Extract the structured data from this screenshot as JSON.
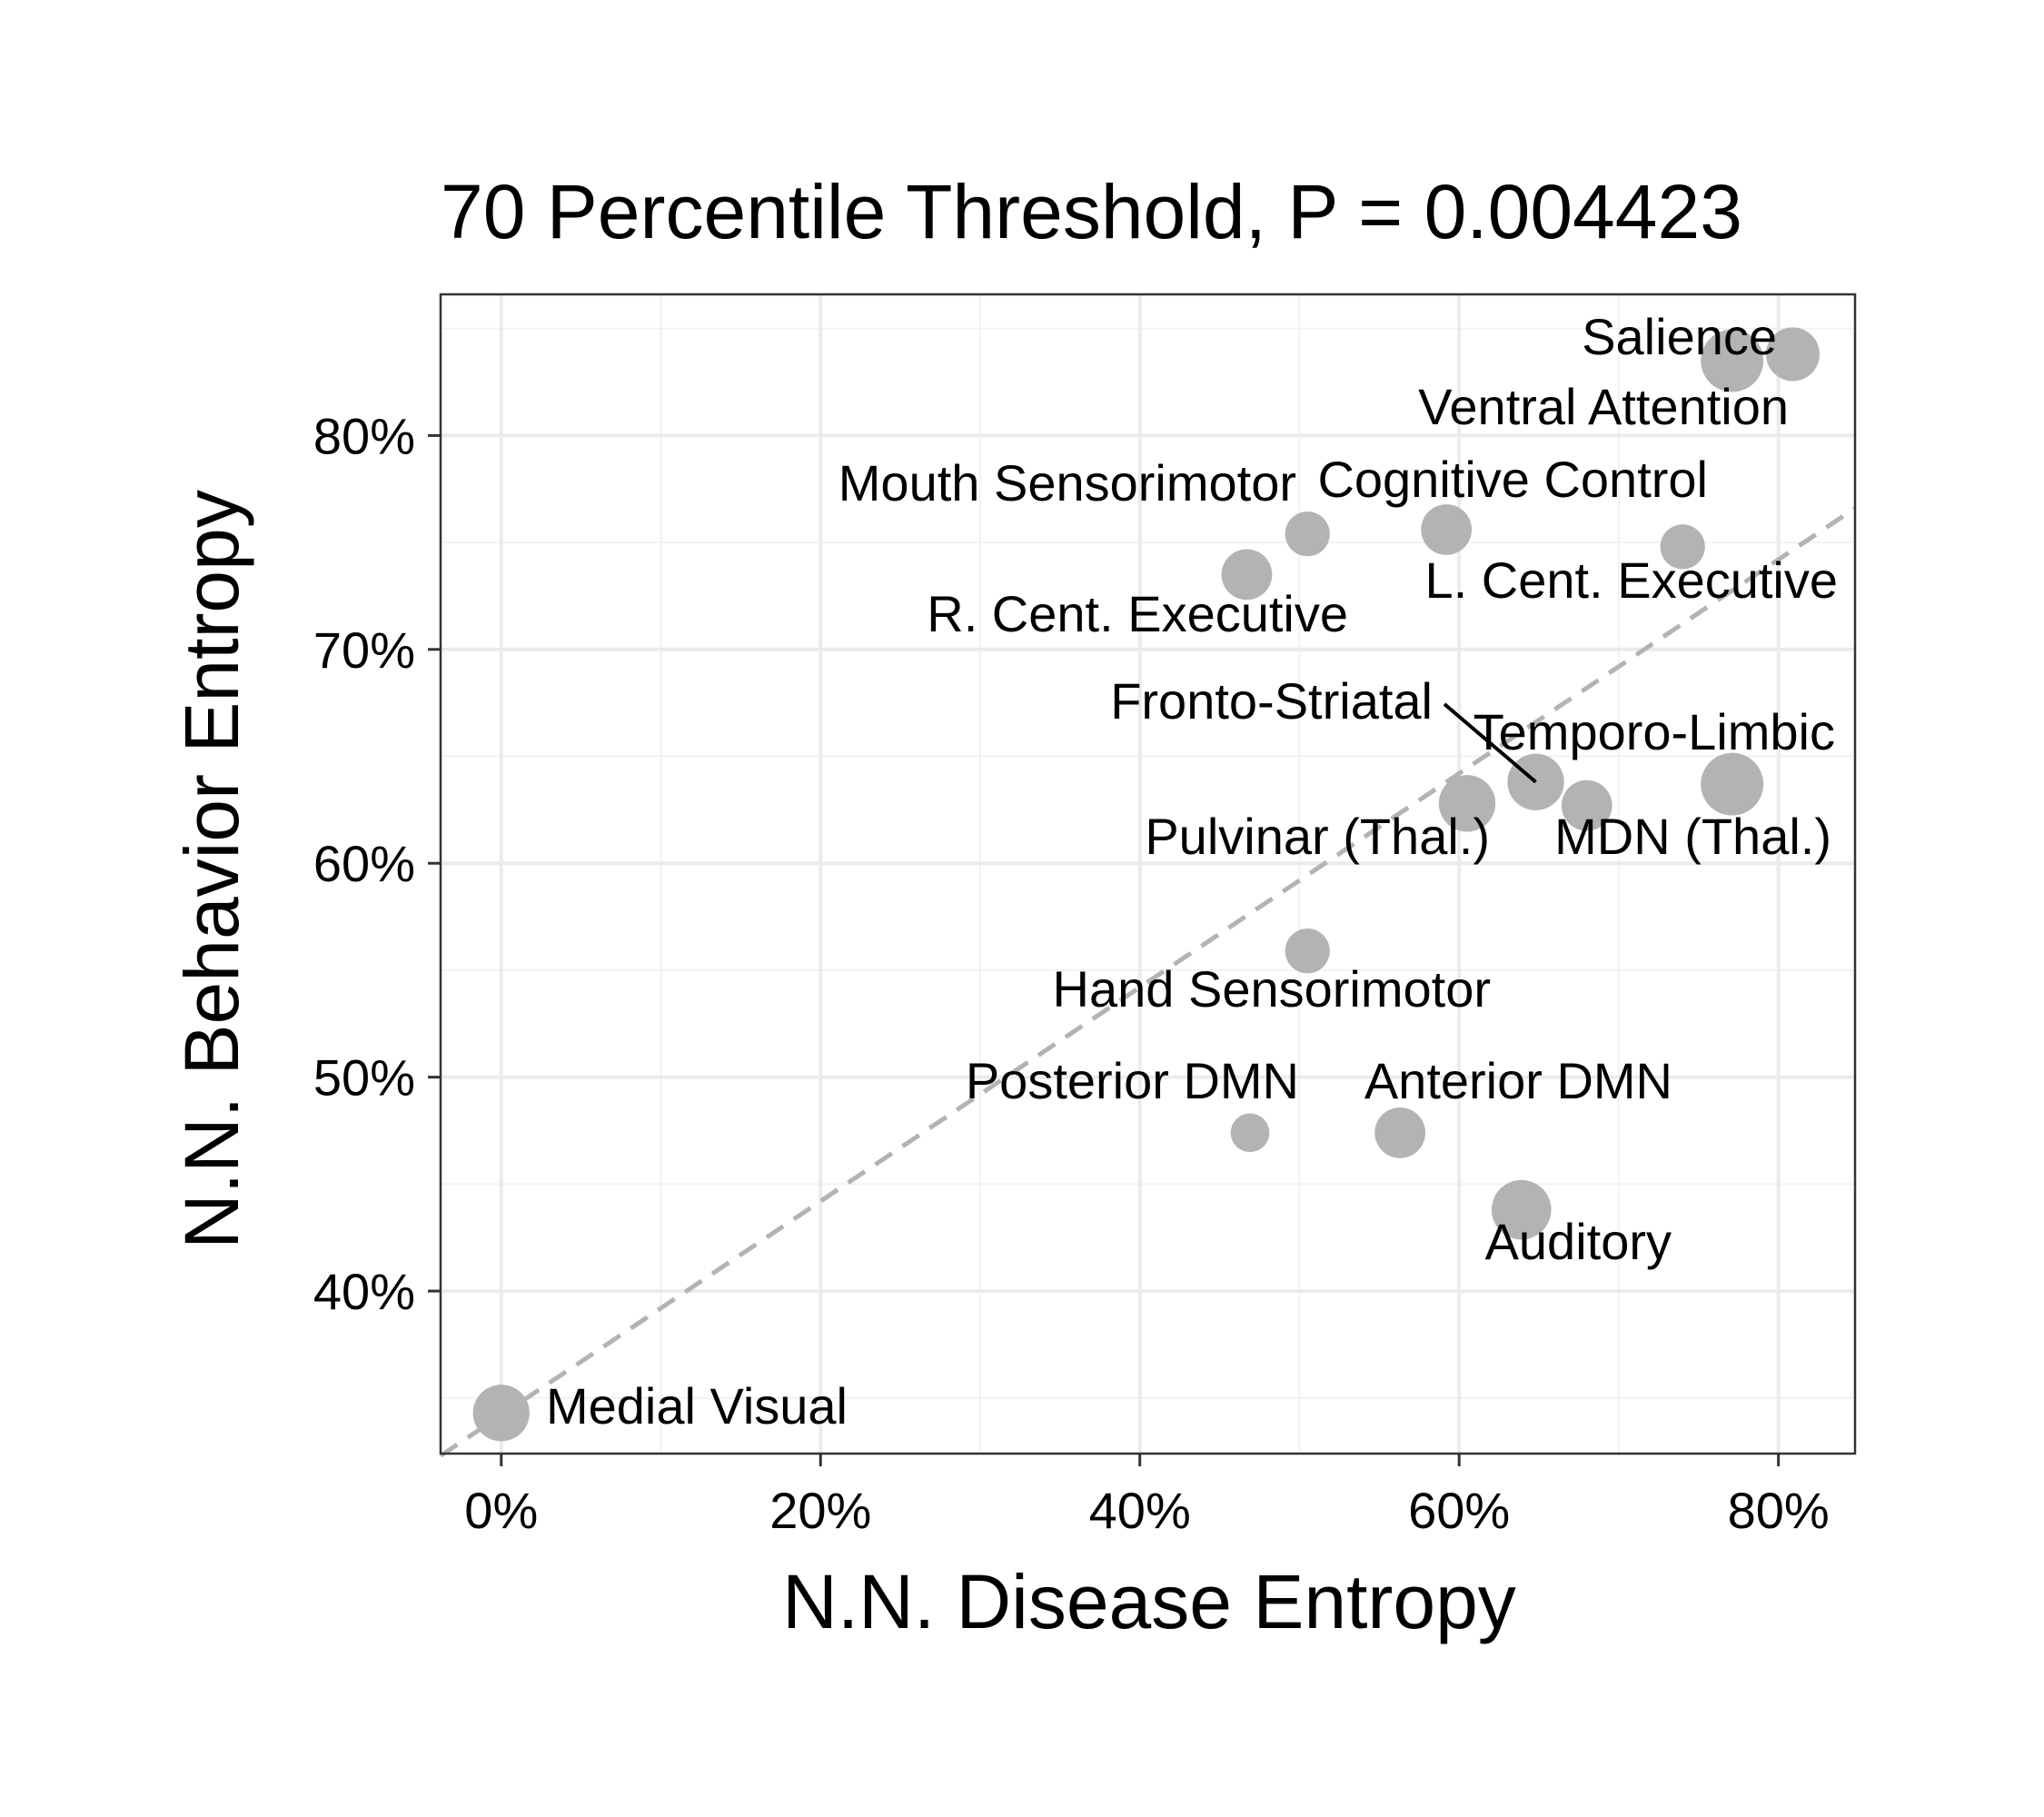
{
  "chart_data": {
    "type": "scatter",
    "title": "70 Percentile Threshold, P = 0.004423",
    "xlabel": "N.N. Disease Entropy",
    "ylabel": "N.N. Behavior Entropy",
    "xlim": [
      -3.8,
      84.8
    ],
    "ylim": [
      32.4,
      86.6
    ],
    "x_ticks": [
      0,
      20,
      40,
      60,
      80
    ],
    "x_tick_labels": [
      "0%",
      "20%",
      "40%",
      "60%",
      "80%"
    ],
    "y_ticks": [
      40,
      50,
      60,
      70,
      80
    ],
    "y_tick_labels": [
      "40%",
      "50%",
      "60%",
      "70%",
      "80%"
    ],
    "grid": true,
    "colors": {
      "point": "#b3b3b3",
      "panel_border": "#333333",
      "grid_major": "#ebebeb",
      "grid_minor": "#f2f2f2",
      "reference_line": "#b3b3b3"
    },
    "reference_line": {
      "slope": 0.5,
      "intercept": 34.2,
      "style": "dashed"
    },
    "points": [
      {
        "name": "Salience",
        "x": 77.1,
        "y": 83.5,
        "size": 4.2
      },
      {
        "name": "Ventral Attention",
        "x": 80.9,
        "y": 83.8,
        "size": 3.6
      },
      {
        "name": "Cognitive Control",
        "x": 59.2,
        "y": 75.6,
        "size": 3.4
      },
      {
        "name": "Mouth Sensorimotor",
        "x": 50.5,
        "y": 75.4,
        "size": 3.0
      },
      {
        "name": "L. Cent. Executive",
        "x": 74.0,
        "y": 74.8,
        "size": 3.0
      },
      {
        "name": "R. Cent. Executive",
        "x": 46.7,
        "y": 73.5,
        "size": 3.4
      },
      {
        "name": "Fronto-Striatal",
        "x": 64.8,
        "y": 63.8,
        "size": 3.8
      },
      {
        "name": "Temporo-Limbic",
        "x": 77.1,
        "y": 63.7,
        "size": 4.2
      },
      {
        "name": "Pulvinar (Thal.)",
        "x": 60.5,
        "y": 62.8,
        "size": 3.8
      },
      {
        "name": "MDN (Thal.)",
        "x": 68.0,
        "y": 62.7,
        "size": 3.4
      },
      {
        "name": "Hand Sensorimotor",
        "x": 50.5,
        "y": 55.9,
        "size": 3.0
      },
      {
        "name": "Posterior DMN",
        "x": 46.9,
        "y": 47.4,
        "size": 2.6
      },
      {
        "name": "Anterior DMN",
        "x": 56.3,
        "y": 47.4,
        "size": 3.4
      },
      {
        "name": "Auditory",
        "x": 63.9,
        "y": 43.8,
        "size": 4.0
      },
      {
        "name": "Medial Visual",
        "x": 0.0,
        "y": 34.3,
        "size": 3.8
      }
    ]
  }
}
